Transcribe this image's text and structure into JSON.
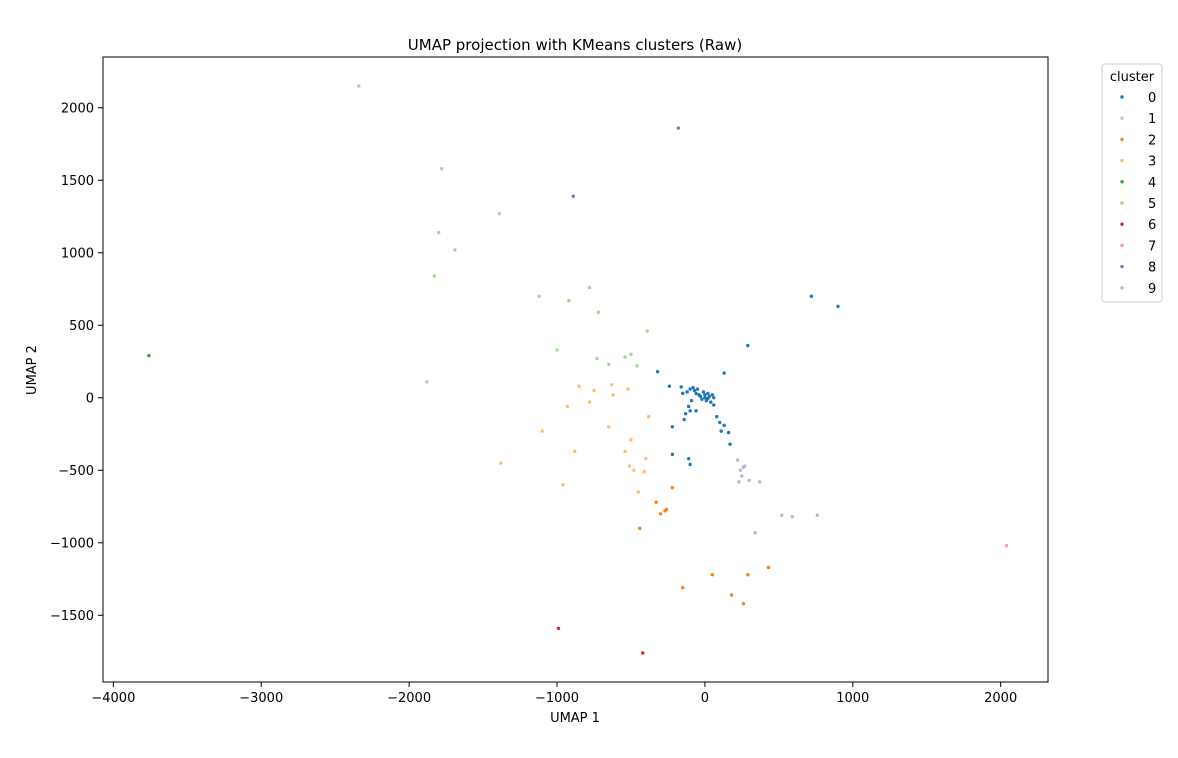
{
  "chart_data": {
    "type": "scatter",
    "title": "UMAP projection with KMeans clusters (Raw)",
    "xlabel": "UMAP 1",
    "ylabel": "UMAP 2",
    "xlim": [
      -4070,
      2320
    ],
    "ylim": [
      -1960,
      2350
    ],
    "x_ticks": [
      -4000,
      -3000,
      -2000,
      -1000,
      0,
      1000,
      2000
    ],
    "x_tick_labels": [
      "−4000",
      "−3000",
      "−2000",
      "−1000",
      "0",
      "1000",
      "2000"
    ],
    "y_ticks": [
      -1500,
      -1000,
      -500,
      0,
      500,
      1000,
      1500,
      2000
    ],
    "y_tick_labels": [
      "−1500",
      "−1000",
      "−500",
      "0",
      "500",
      "1000",
      "1500",
      "2000"
    ],
    "grid": false,
    "legend": {
      "title": "cluster",
      "placement": "outside-top-right"
    },
    "series": [
      {
        "name": "0",
        "color": "#1f77b4",
        "points": [
          [
            -320,
            180
          ],
          [
            -240,
            80
          ],
          [
            -160,
            75
          ],
          [
            -150,
            30
          ],
          [
            -120,
            40
          ],
          [
            -100,
            60
          ],
          [
            -80,
            70
          ],
          [
            -70,
            50
          ],
          [
            -60,
            30
          ],
          [
            -50,
            60
          ],
          [
            -40,
            20
          ],
          [
            -30,
            10
          ],
          [
            -20,
            -10
          ],
          [
            -10,
            40
          ],
          [
            0,
            0
          ],
          [
            0,
            20
          ],
          [
            10,
            -20
          ],
          [
            20,
            30
          ],
          [
            20,
            -5
          ],
          [
            30,
            10
          ],
          [
            40,
            -30
          ],
          [
            50,
            20
          ],
          [
            60,
            -50
          ],
          [
            60,
            0
          ],
          [
            -90,
            -20
          ],
          [
            -110,
            -60
          ],
          [
            -130,
            -110
          ],
          [
            -140,
            -150
          ],
          [
            -100,
            -90
          ],
          [
            -60,
            -90
          ],
          [
            80,
            -130
          ],
          [
            100,
            -170
          ],
          [
            110,
            -230
          ],
          [
            130,
            -190
          ],
          [
            160,
            -240
          ],
          [
            170,
            -320
          ],
          [
            -220,
            -200
          ],
          [
            -220,
            -390
          ],
          [
            -110,
            -420
          ],
          [
            -100,
            -460
          ],
          [
            130,
            170
          ],
          [
            290,
            360
          ],
          [
            720,
            700
          ],
          [
            900,
            630
          ]
        ]
      },
      {
        "name": "1",
        "color": "#aec7e8",
        "points": [
          [
            -2340,
            2150
          ],
          [
            -1780,
            1580
          ],
          [
            -1390,
            1270
          ],
          [
            -1800,
            1140
          ],
          [
            -1690,
            1020
          ],
          [
            -1880,
            110
          ]
        ]
      },
      {
        "name": "2",
        "color": "#ff7f0e",
        "points": [
          [
            -330,
            -720
          ],
          [
            -300,
            -800
          ],
          [
            -270,
            -780
          ],
          [
            -260,
            -770
          ],
          [
            -220,
            -620
          ],
          [
            -440,
            -900
          ],
          [
            -150,
            -1310
          ],
          [
            50,
            -1220
          ],
          [
            180,
            -1360
          ],
          [
            260,
            -1420
          ],
          [
            290,
            -1220
          ],
          [
            430,
            -1170
          ]
        ]
      },
      {
        "name": "3",
        "color": "#ffbb78",
        "points": [
          [
            -850,
            80
          ],
          [
            -780,
            -30
          ],
          [
            -750,
            50
          ],
          [
            -630,
            90
          ],
          [
            -620,
            20
          ],
          [
            -520,
            60
          ],
          [
            -930,
            -60
          ],
          [
            -650,
            -200
          ],
          [
            -540,
            -370
          ],
          [
            -500,
            -290
          ],
          [
            -510,
            -470
          ],
          [
            -480,
            -500
          ],
          [
            -400,
            -420
          ],
          [
            -380,
            -130
          ],
          [
            -410,
            -510
          ],
          [
            -450,
            -650
          ],
          [
            -880,
            -370
          ],
          [
            -1100,
            -230
          ],
          [
            -960,
            -600
          ],
          [
            -1380,
            -450
          ]
        ]
      },
      {
        "name": "4",
        "color": "#2ca02c",
        "points": [
          [
            -3760,
            290
          ]
        ]
      },
      {
        "name": "5",
        "color": "#98df8a",
        "points": [
          [
            -1120,
            700
          ],
          [
            -920,
            670
          ],
          [
            -780,
            760
          ],
          [
            -720,
            590
          ],
          [
            -390,
            460
          ],
          [
            -1000,
            330
          ],
          [
            -730,
            270
          ],
          [
            -650,
            230
          ],
          [
            -540,
            280
          ],
          [
            -500,
            300
          ],
          [
            -460,
            220
          ],
          [
            -1830,
            840
          ]
        ]
      },
      {
        "name": "6",
        "color": "#d62728",
        "points": [
          [
            -990,
            -1590
          ],
          [
            -420,
            -1760
          ]
        ]
      },
      {
        "name": "7",
        "color": "#ff9896",
        "points": [
          [
            2040,
            -1020
          ]
        ]
      },
      {
        "name": "8",
        "color": "#9467bd",
        "points": [
          [
            -890,
            1390
          ],
          [
            -180,
            1860
          ]
        ]
      },
      {
        "name": "9",
        "color": "#c5b0d5",
        "points": [
          [
            220,
            -430
          ],
          [
            240,
            -500
          ],
          [
            260,
            -480
          ],
          [
            270,
            -470
          ],
          [
            250,
            -540
          ],
          [
            230,
            -580
          ],
          [
            300,
            -570
          ],
          [
            370,
            -580
          ],
          [
            340,
            -930
          ],
          [
            520,
            -810
          ],
          [
            590,
            -820
          ],
          [
            760,
            -810
          ]
        ]
      }
    ]
  }
}
